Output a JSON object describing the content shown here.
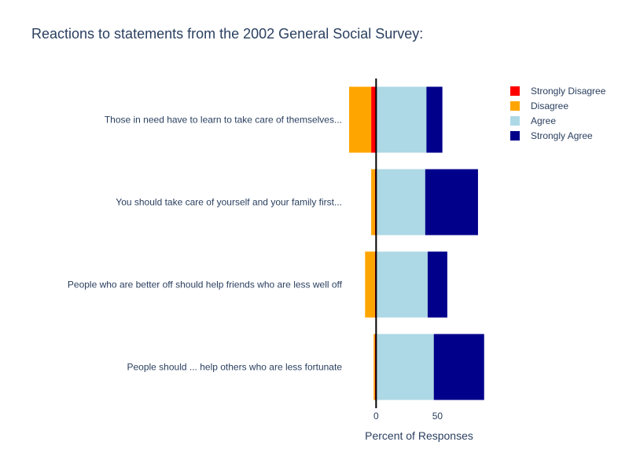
{
  "chart_data": {
    "type": "bar",
    "orientation": "horizontal",
    "barmode": "relative",
    "title": "Reactions to statements from the 2002 General Social Survey:",
    "xlabel": "Percent of Responses",
    "ylabel": "",
    "xlim": [
      -22,
      92
    ],
    "xticks": [
      0,
      50
    ],
    "grid": false,
    "legend_position": "top-right",
    "categories": [
      "Those in need have to learn to take care of themselves...",
      "You should take care of yourself and your family first...",
      "People who are better off should help friends who are less well off",
      "People should ... help others who are less fortunate"
    ],
    "series": [
      {
        "name": "Strongly Disagree",
        "color": "#ff0000",
        "values": [
          -4,
          -1,
          -1,
          -1
        ]
      },
      {
        "name": "Disagree",
        "color": "#ffa500",
        "values": [
          -18,
          -3,
          -8,
          -1
        ]
      },
      {
        "name": "Agree",
        "color": "#add8e6",
        "values": [
          41,
          40,
          42,
          47
        ]
      },
      {
        "name": "Strongly Agree",
        "color": "#00008b",
        "values": [
          13,
          43,
          16,
          41
        ]
      }
    ]
  }
}
